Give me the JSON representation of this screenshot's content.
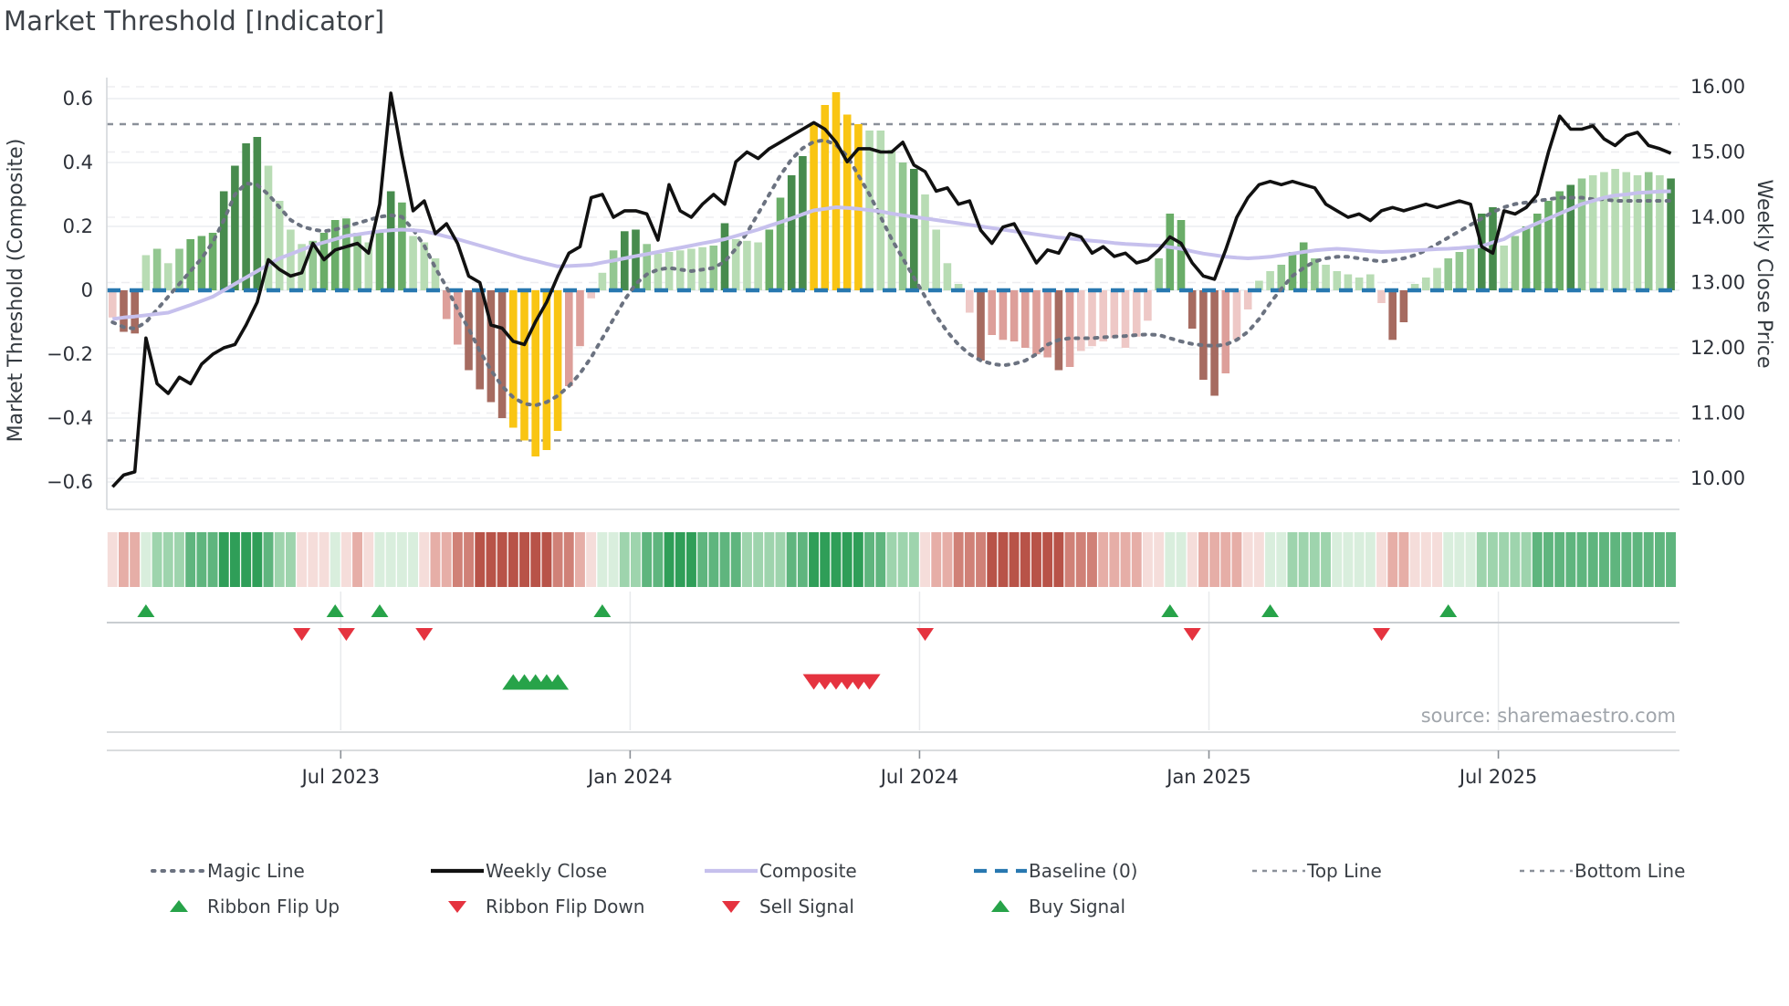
{
  "title": "Market Threshold [Indicator]",
  "source_credit": "source: sharemaestro.com",
  "axes": {
    "left": {
      "title": "Market Threshold (Composite)",
      "tick_labels": [
        "0.6",
        "0.4",
        "0.2",
        "0",
        "−0.2",
        "−0.4",
        "−0.6"
      ],
      "tick_values": [
        0.6,
        0.4,
        0.2,
        0,
        -0.2,
        -0.4,
        -0.6
      ]
    },
    "right": {
      "title": "Weekly Close Price",
      "tick_labels": [
        "16.00",
        "15.00",
        "14.00",
        "13.00",
        "12.00",
        "11.00",
        "10.00"
      ],
      "tick_values": [
        16,
        15,
        14,
        13,
        12,
        11,
        10
      ]
    },
    "x": {
      "tick_labels": [
        "Jul 2023",
        "Jan 2024",
        "Jul 2024",
        "Jan 2025",
        "Jul 2025"
      ],
      "tick_index": [
        20.5,
        46.5,
        72.5,
        98.5,
        124.5
      ]
    }
  },
  "legend": {
    "rows": [
      [
        {
          "label": "Magic Line",
          "type": "dotted-gray"
        },
        {
          "label": "Weekly Close",
          "type": "solid-black"
        },
        {
          "label": "Composite",
          "type": "solid-lavender"
        },
        {
          "label": "Baseline (0)",
          "type": "dashed-blue"
        },
        {
          "label": "Top Line",
          "type": "dashed-gray"
        },
        {
          "label": "Bottom Line",
          "type": "dashed-gray"
        }
      ],
      [
        {
          "label": "Ribbon Flip Up",
          "type": "triangle-up-green"
        },
        {
          "label": "Ribbon Flip Down",
          "type": "triangle-down-red"
        },
        {
          "label": "Sell Signal",
          "type": "triangle-down-red"
        },
        {
          "label": "Buy Signal",
          "type": "triangle-up-green"
        }
      ]
    ]
  },
  "colors": {
    "bar": {
      "g1": "#b8dcb4",
      "g2": "#93c791",
      "g3": "#6aad68",
      "g4": "#478b4d",
      "p1": "#eec8c6",
      "p2": "#dd9f9a",
      "p3": "#a66b60",
      "y": "#f9c513"
    },
    "ribbon": {
      "G1": "#d9eedd",
      "G2": "#9ed4ad",
      "G3": "#5fb57e",
      "G4": "#2f9e58",
      "R1": "#f5ddda",
      "R2": "#e6aea7",
      "R3": "#d08177",
      "R4": "#b85348"
    },
    "weekly_close": "#111111",
    "composite": "#c6c0ed",
    "magic_line": "#6b7280",
    "baseline": "#2878b0",
    "top_bottom_line": "#8a9099",
    "marker_green": "#27a349",
    "marker_red": "#e5333f",
    "grid_solid": "#eceef1",
    "grid_dashed": "#ededf0",
    "spine": "#d4d7da",
    "panel_line": "#c9cdd1",
    "text": "#343a40",
    "tick_text": "#2c3038"
  },
  "chart_data": {
    "type": "bar",
    "title": "Market Threshold [Indicator]",
    "xlabel": "",
    "ylabel_left": "Market Threshold (Composite)",
    "ylabel_right": "Weekly Close Price",
    "ylim_left": [
      -0.6,
      0.6
    ],
    "ylim_right": [
      10.0,
      16.0
    ],
    "grid": true,
    "legend_position": "bottom",
    "n_points": 141,
    "top_line": 0.52,
    "bottom_line": -0.47,
    "baseline": 0,
    "indicator_values": [
      -0.085,
      -0.13,
      -0.135,
      0.11,
      0.13,
      0.085,
      0.13,
      0.16,
      0.17,
      0.18,
      0.31,
      0.39,
      0.46,
      0.48,
      0.39,
      0.28,
      0.19,
      0.145,
      0.155,
      0.18,
      0.22,
      0.225,
      0.18,
      0.15,
      0.18,
      0.31,
      0.275,
      0.17,
      0.15,
      0.1,
      -0.09,
      -0.17,
      -0.25,
      -0.31,
      -0.35,
      -0.4,
      -0.43,
      -0.47,
      -0.52,
      -0.5,
      -0.44,
      -0.3,
      -0.175,
      -0.025,
      0.055,
      0.125,
      0.185,
      0.19,
      0.145,
      0.115,
      0.12,
      0.125,
      0.13,
      0.135,
      0.14,
      0.21,
      0.16,
      0.155,
      0.15,
      0.19,
      0.29,
      0.36,
      0.42,
      0.52,
      0.58,
      0.62,
      0.55,
      0.52,
      0.5,
      0.5,
      0.44,
      0.4,
      0.38,
      0.3,
      0.19,
      0.085,
      0.02,
      -0.07,
      -0.22,
      -0.14,
      -0.155,
      -0.16,
      -0.18,
      -0.2,
      -0.21,
      -0.25,
      -0.24,
      -0.19,
      -0.175,
      -0.16,
      -0.15,
      -0.18,
      -0.145,
      -0.095,
      0.1,
      0.24,
      0.22,
      -0.12,
      -0.28,
      -0.33,
      -0.26,
      -0.155,
      -0.06,
      0.03,
      0.06,
      0.08,
      0.12,
      0.15,
      0.1,
      0.08,
      0.06,
      0.05,
      0.04,
      0.05,
      -0.04,
      -0.155,
      -0.1,
      0.02,
      0.04,
      0.07,
      0.1,
      0.12,
      0.14,
      0.24,
      0.26,
      0.14,
      0.17,
      0.2,
      0.24,
      0.28,
      0.31,
      0.33,
      0.35,
      0.36,
      0.37,
      0.38,
      0.37,
      0.36,
      0.37,
      0.36,
      0.35
    ],
    "indicator_bar_colors": [
      "p1",
      "p3",
      "p3",
      "g1",
      "g2",
      "g1",
      "g2",
      "g3",
      "g3",
      "g3",
      "g4",
      "g4",
      "g4",
      "g4",
      "g1",
      "g1",
      "g1",
      "g1",
      "g2",
      "g3",
      "g3",
      "g3",
      "g2",
      "g1",
      "g3",
      "g4",
      "g3",
      "g1",
      "g1",
      "g1",
      "p2",
      "p2",
      "p3",
      "p3",
      "p3",
      "p3",
      "y",
      "y",
      "y",
      "y",
      "y",
      "p2",
      "p2",
      "p1",
      "g1",
      "g2",
      "g4",
      "g4",
      "g2",
      "g1",
      "g1",
      "g1",
      "g1",
      "g1",
      "g2",
      "g4",
      "g1",
      "g1",
      "g1",
      "g3",
      "g3",
      "g4",
      "g4",
      "y",
      "y",
      "y",
      "y",
      "y",
      "g1",
      "g1",
      "g1",
      "g2",
      "g4",
      "g1",
      "g1",
      "g1",
      "g1",
      "p1",
      "p3",
      "p2",
      "p2",
      "p2",
      "p2",
      "p2",
      "p2",
      "p3",
      "p2",
      "p1",
      "p1",
      "p1",
      "p1",
      "p1",
      "p1",
      "p1",
      "g2",
      "g3",
      "g3",
      "p3",
      "p3",
      "p3",
      "p2",
      "p1",
      "p1",
      "g1",
      "g1",
      "g2",
      "g3",
      "g3",
      "g2",
      "g1",
      "g1",
      "g1",
      "g1",
      "g1",
      "p1",
      "p3",
      "p3",
      "g1",
      "g1",
      "g1",
      "g2",
      "g2",
      "g2",
      "g4",
      "g4",
      "g1",
      "g2",
      "g3",
      "g3",
      "g3",
      "g3",
      "g4",
      "g2",
      "g1",
      "g1",
      "g1",
      "g1",
      "g1",
      "g2",
      "g1",
      "g4"
    ],
    "weekly_close": [
      9.87,
      10.05,
      10.1,
      12.15,
      11.45,
      11.3,
      11.55,
      11.45,
      11.75,
      11.9,
      12.0,
      12.05,
      12.35,
      12.7,
      13.35,
      13.2,
      13.1,
      13.15,
      13.6,
      13.35,
      13.5,
      13.55,
      13.6,
      13.45,
      14.2,
      15.9,
      14.95,
      14.1,
      14.25,
      13.75,
      13.9,
      13.6,
      13.1,
      13.0,
      12.35,
      12.3,
      12.1,
      12.05,
      12.4,
      12.7,
      13.1,
      13.45,
      13.55,
      14.3,
      14.35,
      14.0,
      14.1,
      14.1,
      14.05,
      13.65,
      14.5,
      14.1,
      14.0,
      14.2,
      14.35,
      14.2,
      14.85,
      15.0,
      14.9,
      15.05,
      15.15,
      15.25,
      15.35,
      15.45,
      15.35,
      15.15,
      14.85,
      15.05,
      15.05,
      15.0,
      15.0,
      15.15,
      14.8,
      14.7,
      14.4,
      14.45,
      14.2,
      14.25,
      13.8,
      13.6,
      13.85,
      13.9,
      13.6,
      13.3,
      13.5,
      13.45,
      13.75,
      13.7,
      13.45,
      13.55,
      13.4,
      13.45,
      13.3,
      13.35,
      13.5,
      13.7,
      13.6,
      13.3,
      13.1,
      13.05,
      13.5,
      14.0,
      14.3,
      14.5,
      14.55,
      14.5,
      14.55,
      14.5,
      14.45,
      14.2,
      14.1,
      14.0,
      14.05,
      13.95,
      14.1,
      14.15,
      14.1,
      14.15,
      14.2,
      14.15,
      14.2,
      14.25,
      14.2,
      13.55,
      13.45,
      14.1,
      14.05,
      14.15,
      14.35,
      15.0,
      15.55,
      15.35,
      15.35,
      15.4,
      15.2,
      15.1,
      15.25,
      15.3,
      15.1,
      15.05,
      14.98
    ],
    "composite": [
      -0.09,
      -0.085,
      -0.082,
      -0.078,
      -0.074,
      -0.07,
      -0.058,
      -0.046,
      -0.033,
      -0.02,
      0.0,
      0.02,
      0.04,
      0.06,
      0.08,
      0.1,
      0.113,
      0.127,
      0.14,
      0.15,
      0.16,
      0.17,
      0.175,
      0.18,
      0.185,
      0.188,
      0.19,
      0.188,
      0.185,
      0.177,
      0.168,
      0.16,
      0.15,
      0.14,
      0.13,
      0.12,
      0.11,
      0.1,
      0.092,
      0.083,
      0.075,
      0.076,
      0.078,
      0.08,
      0.087,
      0.093,
      0.1,
      0.107,
      0.113,
      0.12,
      0.127,
      0.133,
      0.14,
      0.147,
      0.153,
      0.16,
      0.17,
      0.18,
      0.19,
      0.202,
      0.213,
      0.225,
      0.238,
      0.25,
      0.255,
      0.26,
      0.258,
      0.255,
      0.251,
      0.247,
      0.24,
      0.235,
      0.23,
      0.225,
      0.22,
      0.215,
      0.21,
      0.205,
      0.2,
      0.195,
      0.19,
      0.185,
      0.18,
      0.175,
      0.17,
      0.165,
      0.162,
      0.158,
      0.155,
      0.152,
      0.148,
      0.145,
      0.143,
      0.141,
      0.14,
      0.135,
      0.13,
      0.122,
      0.115,
      0.11,
      0.105,
      0.102,
      0.1,
      0.102,
      0.105,
      0.11,
      0.115,
      0.12,
      0.125,
      0.128,
      0.13,
      0.128,
      0.125,
      0.122,
      0.12,
      0.121,
      0.123,
      0.125,
      0.127,
      0.129,
      0.13,
      0.132,
      0.135,
      0.138,
      0.15,
      0.16,
      0.18,
      0.195,
      0.21,
      0.225,
      0.24,
      0.255,
      0.27,
      0.28,
      0.29,
      0.297,
      0.3,
      0.305,
      0.307,
      0.309,
      0.31
    ],
    "magic_line": [
      -0.1,
      -0.115,
      -0.12,
      -0.1,
      -0.06,
      -0.02,
      0.02,
      0.06,
      0.1,
      0.15,
      0.22,
      0.3,
      0.335,
      0.33,
      0.3,
      0.26,
      0.22,
      0.2,
      0.19,
      0.185,
      0.19,
      0.2,
      0.21,
      0.22,
      0.23,
      0.235,
      0.23,
      0.19,
      0.14,
      0.07,
      0.01,
      -0.06,
      -0.12,
      -0.19,
      -0.25,
      -0.3,
      -0.335,
      -0.355,
      -0.36,
      -0.35,
      -0.33,
      -0.3,
      -0.26,
      -0.21,
      -0.15,
      -0.09,
      -0.03,
      0.02,
      0.05,
      0.065,
      0.07,
      0.065,
      0.06,
      0.065,
      0.07,
      0.09,
      0.13,
      0.18,
      0.24,
      0.3,
      0.36,
      0.41,
      0.445,
      0.465,
      0.47,
      0.455,
      0.42,
      0.36,
      0.3,
      0.23,
      0.16,
      0.1,
      0.04,
      -0.02,
      -0.08,
      -0.13,
      -0.17,
      -0.2,
      -0.22,
      -0.23,
      -0.235,
      -0.23,
      -0.22,
      -0.2,
      -0.17,
      -0.155,
      -0.15,
      -0.15,
      -0.15,
      -0.147,
      -0.145,
      -0.143,
      -0.14,
      -0.138,
      -0.14,
      -0.15,
      -0.16,
      -0.168,
      -0.172,
      -0.174,
      -0.17,
      -0.155,
      -0.13,
      -0.09,
      -0.04,
      0.005,
      0.045,
      0.07,
      0.09,
      0.1,
      0.105,
      0.105,
      0.1,
      0.095,
      0.09,
      0.095,
      0.1,
      0.11,
      0.125,
      0.145,
      0.165,
      0.185,
      0.205,
      0.225,
      0.245,
      0.26,
      0.27,
      0.275,
      0.28,
      0.285,
      0.29,
      0.29,
      0.29,
      0.285,
      0.285,
      0.28,
      0.28,
      0.28,
      0.28,
      0.28,
      0.28
    ],
    "ribbon": [
      "R1",
      "R2",
      "R2",
      "G1",
      "G2",
      "G2",
      "G2",
      "G3",
      "G3",
      "G3",
      "G4",
      "G4",
      "G4",
      "G4",
      "G3",
      "G2",
      "G2",
      "R1",
      "R1",
      "R1",
      "G1",
      "R1",
      "R2",
      "R1",
      "G1",
      "G1",
      "G1",
      "G1",
      "R1",
      "R2",
      "R2",
      "R3",
      "R3",
      "R4",
      "R4",
      "R4",
      "R4",
      "R4",
      "R4",
      "R4",
      "R3",
      "R3",
      "R2",
      "R1",
      "G1",
      "G1",
      "G2",
      "G2",
      "G3",
      "G3",
      "G4",
      "G4",
      "G4",
      "G3",
      "G3",
      "G3",
      "G3",
      "G2",
      "G2",
      "G2",
      "G2",
      "G3",
      "G3",
      "G4",
      "G4",
      "G4",
      "G4",
      "G4",
      "G3",
      "G3",
      "G2",
      "G2",
      "G2",
      "R1",
      "R2",
      "R2",
      "R3",
      "R3",
      "R3",
      "R4",
      "R4",
      "R4",
      "R4",
      "R4",
      "R4",
      "R4",
      "R3",
      "R3",
      "R3",
      "R2",
      "R2",
      "R2",
      "R2",
      "R1",
      "R1",
      "G1",
      "G1",
      "R1",
      "R2",
      "R2",
      "R2",
      "R2",
      "R1",
      "R1",
      "G1",
      "G1",
      "G2",
      "G2",
      "G2",
      "G2",
      "G1",
      "G1",
      "G1",
      "G1",
      "R1",
      "R2",
      "R2",
      "R1",
      "R1",
      "R1",
      "G1",
      "G1",
      "G1",
      "G2",
      "G2",
      "G2",
      "G2",
      "G2",
      "G3",
      "G3",
      "G3",
      "G3",
      "G3",
      "G3",
      "G3",
      "G3",
      "G3",
      "G3",
      "G3",
      "G3",
      "G3"
    ],
    "signals": {
      "ribbon_flip_up_index": [
        3,
        20,
        24,
        44,
        95,
        104,
        120
      ],
      "ribbon_flip_down_index": [
        17,
        21,
        28,
        73,
        97,
        114
      ],
      "buy_signal_index": [
        36,
        37,
        38,
        39,
        40
      ],
      "sell_signal_index": [
        63,
        64,
        65,
        66,
        67,
        68
      ]
    }
  }
}
